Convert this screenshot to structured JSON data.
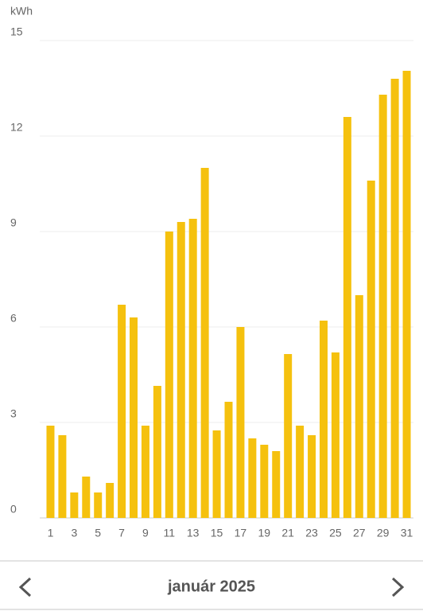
{
  "chart_data": {
    "type": "bar",
    "unit_label": "kWh",
    "categories": [
      "1",
      null,
      "3",
      null,
      "5",
      null,
      "7",
      null,
      "9",
      null,
      "11",
      null,
      "13",
      null,
      "15",
      null,
      "17",
      null,
      "19",
      null,
      "21",
      null,
      "23",
      null,
      "25",
      null,
      "27",
      null,
      "29",
      null,
      "31"
    ],
    "values": [
      2.9,
      2.6,
      0.8,
      1.3,
      0.8,
      1.1,
      6.7,
      6.3,
      2.9,
      4.15,
      9.0,
      9.3,
      9.4,
      11.0,
      2.75,
      3.65,
      6.0,
      2.5,
      2.3,
      2.1,
      5.15,
      2.9,
      2.6,
      6.2,
      5.2,
      12.6,
      7.0,
      10.6,
      13.3,
      13.8,
      14.05
    ],
    "color": "#f5c10e",
    "ylim": [
      0,
      15
    ],
    "yticks": [
      0,
      3,
      6,
      9,
      12,
      15
    ],
    "grid": true
  },
  "navigation": {
    "period": "január 2025"
  }
}
